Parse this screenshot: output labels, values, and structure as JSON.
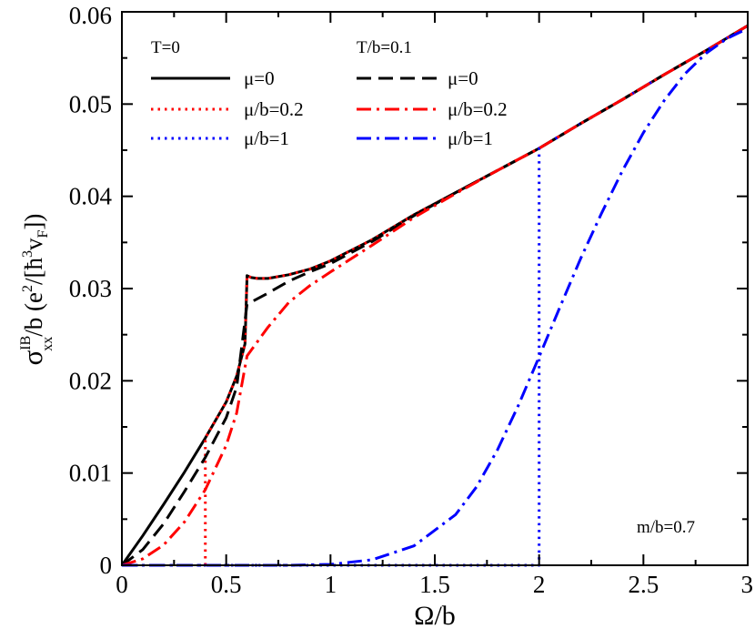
{
  "chart_data": {
    "type": "line",
    "xlabel": "Ω/b",
    "ylabel": {
      "base": "σ",
      "sup": "IB",
      "sub": "xx",
      "rest1": "/b (e",
      "sup2": "2",
      "rest2": "/[ħ",
      "sup3": "3",
      "rest3": "v",
      "sub3": "F",
      "rest4": "])"
    },
    "xlim": [
      0,
      3
    ],
    "ylim": [
      0,
      0.06
    ],
    "xticks": [
      0,
      0.5,
      1,
      1.5,
      2,
      2.5,
      3
    ],
    "xtick_labels": [
      "0",
      "0.5",
      "1",
      "1.5",
      "2",
      "2.5",
      "3"
    ],
    "yticks": [
      0,
      0.01,
      0.02,
      0.03,
      0.04,
      0.05,
      0.06
    ],
    "ytick_labels": [
      "0",
      "0.01",
      "0.02",
      "0.03",
      "0.04",
      "0.05",
      "0.06"
    ],
    "annotation": "m/b=0.7",
    "legend_groups": [
      "T=0",
      "T/b=0.1"
    ],
    "series": [
      {
        "name": "μ=0",
        "group": "T=0",
        "color": "#000000",
        "dash": "solid",
        "x": [
          0,
          0.1,
          0.2,
          0.3,
          0.4,
          0.5,
          0.55,
          0.59,
          0.6,
          0.62,
          0.65,
          0.7,
          0.8,
          0.9,
          1.0,
          1.2,
          1.4,
          1.6,
          1.8,
          2.0,
          2.2,
          2.4,
          2.6,
          2.8,
          3.0
        ],
        "y": [
          0,
          0.0032,
          0.0066,
          0.0101,
          0.0138,
          0.0177,
          0.0205,
          0.024,
          0.0314,
          0.0312,
          0.0311,
          0.0311,
          0.0315,
          0.0321,
          0.033,
          0.0353,
          0.038,
          0.0404,
          0.0428,
          0.0452,
          0.0479,
          0.0505,
          0.0532,
          0.0558,
          0.0585
        ]
      },
      {
        "name": "μ/b=0.2",
        "group": "T=0",
        "color": "#ff0000",
        "dash": "dot",
        "x": [
          0.4,
          0.4,
          0.5,
          0.55,
          0.59,
          0.6,
          0.62,
          0.65,
          0.7,
          0.8,
          0.9,
          1.0,
          1.2,
          1.4,
          1.6,
          1.8,
          2.0,
          2.2,
          2.4,
          2.6,
          2.8,
          3.0
        ],
        "y": [
          0,
          0.0138,
          0.0177,
          0.0205,
          0.024,
          0.0314,
          0.0312,
          0.0311,
          0.0311,
          0.0315,
          0.0321,
          0.033,
          0.0353,
          0.038,
          0.0404,
          0.0428,
          0.0452,
          0.0479,
          0.0505,
          0.0532,
          0.0558,
          0.0585
        ]
      },
      {
        "name": "μ/b=1",
        "group": "T=0",
        "color": "#0000ff",
        "dash": "dot",
        "x": [
          0,
          2.0,
          2.0,
          2.2,
          2.4,
          2.6,
          2.8,
          3.0
        ],
        "y": [
          0,
          0,
          0.0452,
          0.0479,
          0.0505,
          0.0532,
          0.0558,
          0.0585
        ]
      },
      {
        "name": "μ=0",
        "group": "T/b=0.1",
        "color": "#000000",
        "dash": "dash",
        "x": [
          0,
          0.1,
          0.2,
          0.3,
          0.4,
          0.5,
          0.55,
          0.6,
          0.7,
          0.8,
          0.9,
          1.0,
          1.2,
          1.4,
          1.6,
          1.8,
          2.0,
          2.2,
          2.4,
          2.6,
          2.8,
          3.0
        ],
        "y": [
          0,
          0.0017,
          0.0045,
          0.008,
          0.0117,
          0.016,
          0.0193,
          0.0283,
          0.0295,
          0.0308,
          0.0318,
          0.0327,
          0.0351,
          0.0379,
          0.0404,
          0.0428,
          0.0452,
          0.0479,
          0.0505,
          0.0532,
          0.0558,
          0.0585
        ]
      },
      {
        "name": "μ/b=0.2",
        "group": "T/b=0.1",
        "color": "#ff0000",
        "dash": "dashdot",
        "x": [
          0,
          0.1,
          0.2,
          0.3,
          0.4,
          0.5,
          0.55,
          0.6,
          0.7,
          0.8,
          0.9,
          1.0,
          1.2,
          1.4,
          1.6,
          1.8,
          2.0,
          2.2,
          2.4,
          2.6,
          2.8,
          3.0
        ],
        "y": [
          0,
          0.0007,
          0.0022,
          0.0047,
          0.0082,
          0.013,
          0.0165,
          0.0227,
          0.0258,
          0.0285,
          0.0303,
          0.0318,
          0.0347,
          0.0377,
          0.0403,
          0.0428,
          0.0452,
          0.0479,
          0.0505,
          0.0532,
          0.0558,
          0.0585
        ]
      },
      {
        "name": "μ/b=1",
        "group": "T/b=0.1",
        "color": "#0000ff",
        "dash": "dashdot",
        "x": [
          0,
          0.8,
          1.0,
          1.2,
          1.4,
          1.6,
          1.7,
          1.8,
          1.9,
          2.0,
          2.1,
          2.2,
          2.3,
          2.4,
          2.5,
          2.6,
          2.7,
          2.8,
          2.9,
          3.0
        ],
        "y": [
          0,
          0,
          0.0001,
          0.0006,
          0.0021,
          0.0055,
          0.0085,
          0.0125,
          0.0173,
          0.0226,
          0.028,
          0.0333,
          0.0382,
          0.0428,
          0.0469,
          0.0504,
          0.0533,
          0.0555,
          0.0571,
          0.0582
        ]
      }
    ]
  }
}
